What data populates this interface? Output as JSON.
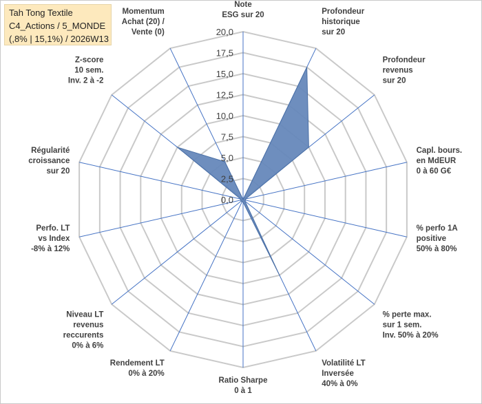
{
  "info_box": {
    "line1": "Tah Tong Textile",
    "line2": "C4_Actions / 5_MONDE",
    "line3": "(,8% | 15,1%) / 2026W13"
  },
  "colors": {
    "series_fill": "#6688bb",
    "series_stroke": "#4a6fa5",
    "grid": "#c9c9c9",
    "spoke": "#4472c4",
    "info_bg": "#fde9bd"
  },
  "chart_data": {
    "type": "radar",
    "rmin": 0,
    "rmax": 20,
    "ticks": [
      "0,0",
      "2,5",
      "5,0",
      "7,5",
      "10,0",
      "12,5",
      "15,0",
      "17,5",
      "20,0"
    ],
    "tick_values": [
      0,
      2.5,
      5,
      7.5,
      10,
      12.5,
      15,
      17.5,
      20
    ],
    "categories": [
      [
        "Note",
        "ESG sur 20"
      ],
      [
        "Profondeur",
        "historique",
        "sur 20"
      ],
      [
        "Profondeur",
        "revenus",
        "sur 20"
      ],
      [
        "Capl. bours.",
        "en MdEUR",
        "0 à 60 G€"
      ],
      [
        "% perfo 1A",
        "positive",
        "50% à 80%"
      ],
      [
        "% perte max.",
        "sur 1 sem.",
        "Inv. 50% à 20%"
      ],
      [
        "Volatilité LT",
        "Inversée",
        "40% à 0%"
      ],
      [
        "Ratio Sharpe",
        "0 à 1"
      ],
      [
        "Rendement LT",
        "0% à 20%"
      ],
      [
        "Niveau LT",
        "revenus",
        "reccurents",
        "0% à 6%"
      ],
      [
        "Perfo. LT",
        "vs Index",
        "-8% à 12%"
      ],
      [
        "Régularité",
        "croissance",
        "sur 20"
      ],
      [
        "Z-score",
        "10 sem.",
        "Inv. 2 à -2"
      ],
      [
        "Momentum",
        "Achat (20) /",
        "Vente (0)"
      ]
    ],
    "series": [
      {
        "values": [
          0,
          17.5,
          10,
          0.3,
          0.3,
          0.3,
          10,
          0.3,
          0.3,
          0.3,
          0.3,
          0.3,
          10,
          5
        ]
      }
    ],
    "grid": true,
    "legend": "none"
  }
}
